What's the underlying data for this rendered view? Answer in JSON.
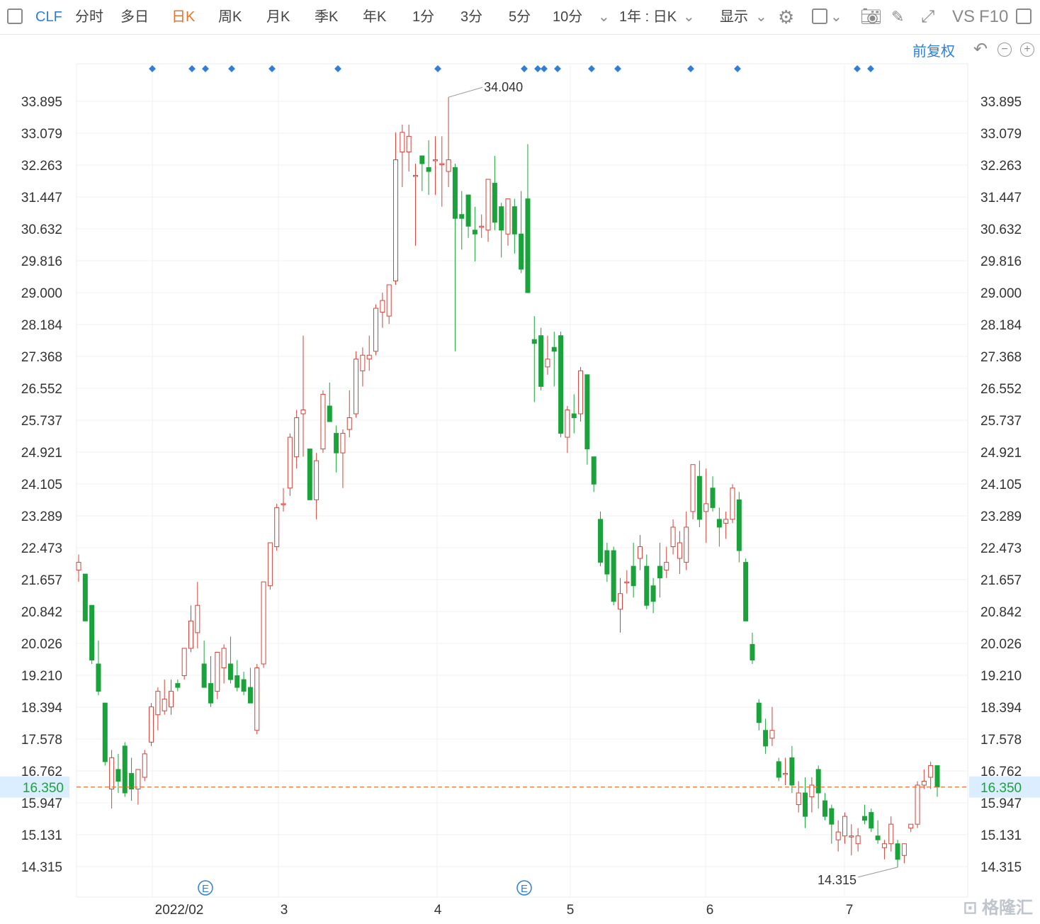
{
  "toolbar": {
    "ticker": "CLF",
    "tabs": [
      "分时",
      "多日",
      "日K",
      "周K",
      "月K",
      "季K",
      "年K",
      "1分",
      "3分",
      "5分",
      "10分"
    ],
    "active_tab": "日K",
    "range_select": "1年 : 日K",
    "display_select": "显示",
    "vs_label": "VS",
    "f10_label": "F10"
  },
  "subbar": {
    "adjust_label": "前复权"
  },
  "colors": {
    "up": "#d0443a",
    "down": "#1aa33a",
    "ref_line": "#e8742b",
    "current_price_bg": "#dbeeff",
    "current_price_text": "#1aa33a",
    "accent": "#2f7fd8"
  },
  "chart_data": {
    "type": "candlestick",
    "y_ticks": [
      "33.895",
      "33.079",
      "32.263",
      "31.447",
      "30.632",
      "29.816",
      "29.000",
      "28.184",
      "27.368",
      "26.552",
      "25.737",
      "24.921",
      "24.105",
      "23.289",
      "22.473",
      "21.657",
      "20.842",
      "20.026",
      "19.210",
      "18.394",
      "17.578",
      "16.762",
      "15.947",
      "15.131",
      "14.315"
    ],
    "ylim": [
      13.65,
      35.1
    ],
    "x_labels": [
      "2022/02",
      "3",
      "4",
      "5",
      "6",
      "7"
    ],
    "current_price": "16.350",
    "high_annotation": "34.040",
    "low_annotation": "14.315",
    "event_markers": [
      "E",
      "E"
    ],
    "grid": true,
    "candles": [
      {
        "o": 21.9,
        "h": 22.3,
        "l": 21.6,
        "c": 22.1
      },
      {
        "o": 21.8,
        "h": 21.8,
        "l": 20.6,
        "c": 20.6
      },
      {
        "o": 21.0,
        "h": 21.0,
        "l": 19.5,
        "c": 19.6
      },
      {
        "o": 19.5,
        "h": 20.1,
        "l": 18.7,
        "c": 18.8
      },
      {
        "o": 18.5,
        "h": 18.5,
        "l": 16.9,
        "c": 17.0
      },
      {
        "o": 16.3,
        "h": 17.3,
        "l": 15.8,
        "c": 17.1
      },
      {
        "o": 16.8,
        "h": 17.2,
        "l": 16.2,
        "c": 16.5
      },
      {
        "o": 17.4,
        "h": 17.5,
        "l": 16.1,
        "c": 16.2
      },
      {
        "o": 16.7,
        "h": 17.1,
        "l": 16.0,
        "c": 16.3
      },
      {
        "o": 16.3,
        "h": 16.8,
        "l": 15.9,
        "c": 16.8
      },
      {
        "o": 16.6,
        "h": 17.3,
        "l": 16.5,
        "c": 17.2
      },
      {
        "o": 17.5,
        "h": 18.5,
        "l": 17.4,
        "c": 18.4
      },
      {
        "o": 18.2,
        "h": 18.9,
        "l": 17.8,
        "c": 18.8
      },
      {
        "o": 18.3,
        "h": 19.1,
        "l": 18.2,
        "c": 18.6
      },
      {
        "o": 18.4,
        "h": 19.1,
        "l": 18.2,
        "c": 18.8
      },
      {
        "o": 19.0,
        "h": 19.1,
        "l": 18.8,
        "c": 18.9
      },
      {
        "o": 19.2,
        "h": 19.9,
        "l": 19.1,
        "c": 19.9
      },
      {
        "o": 19.9,
        "h": 21.0,
        "l": 19.8,
        "c": 20.6
      },
      {
        "o": 20.3,
        "h": 21.6,
        "l": 19.9,
        "c": 21.0
      },
      {
        "o": 19.5,
        "h": 20.1,
        "l": 18.9,
        "c": 18.9
      },
      {
        "o": 19.0,
        "h": 19.7,
        "l": 18.4,
        "c": 18.5
      },
      {
        "o": 18.8,
        "h": 19.7,
        "l": 18.6,
        "c": 19.8
      },
      {
        "o": 19.4,
        "h": 20.0,
        "l": 19.0,
        "c": 19.9
      },
      {
        "o": 19.5,
        "h": 20.2,
        "l": 19.0,
        "c": 19.1
      },
      {
        "o": 19.2,
        "h": 19.6,
        "l": 18.8,
        "c": 18.9
      },
      {
        "o": 19.1,
        "h": 19.3,
        "l": 18.7,
        "c": 18.8
      },
      {
        "o": 18.9,
        "h": 19.4,
        "l": 18.6,
        "c": 18.5
      },
      {
        "o": 17.8,
        "h": 19.5,
        "l": 17.7,
        "c": 19.4
      },
      {
        "o": 19.5,
        "h": 21.6,
        "l": 19.4,
        "c": 21.6
      },
      {
        "o": 21.5,
        "h": 22.6,
        "l": 21.4,
        "c": 22.6
      },
      {
        "o": 22.5,
        "h": 23.6,
        "l": 22.4,
        "c": 23.5
      },
      {
        "o": 23.6,
        "h": 24.0,
        "l": 23.4,
        "c": 23.6
      },
      {
        "o": 24.0,
        "h": 25.4,
        "l": 23.8,
        "c": 25.3
      },
      {
        "o": 24.8,
        "h": 26.0,
        "l": 24.5,
        "c": 25.8
      },
      {
        "o": 25.9,
        "h": 27.9,
        "l": 24.8,
        "c": 26.0
      },
      {
        "o": 25.0,
        "h": 25.0,
        "l": 23.7,
        "c": 23.7
      },
      {
        "o": 23.7,
        "h": 24.9,
        "l": 23.2,
        "c": 24.7
      },
      {
        "o": 25.0,
        "h": 26.5,
        "l": 24.9,
        "c": 26.4
      },
      {
        "o": 26.1,
        "h": 26.7,
        "l": 25.7,
        "c": 25.7
      },
      {
        "o": 25.4,
        "h": 25.6,
        "l": 24.4,
        "c": 24.9
      },
      {
        "o": 24.9,
        "h": 25.5,
        "l": 24.0,
        "c": 25.4
      },
      {
        "o": 25.5,
        "h": 26.5,
        "l": 25.3,
        "c": 25.8
      },
      {
        "o": 25.9,
        "h": 27.5,
        "l": 25.8,
        "c": 27.3
      },
      {
        "o": 27.0,
        "h": 27.6,
        "l": 26.6,
        "c": 27.4
      },
      {
        "o": 27.3,
        "h": 27.9,
        "l": 27.0,
        "c": 27.4
      },
      {
        "o": 27.5,
        "h": 28.7,
        "l": 27.4,
        "c": 28.6
      },
      {
        "o": 28.5,
        "h": 29.0,
        "l": 28.1,
        "c": 28.8
      },
      {
        "o": 28.4,
        "h": 29.2,
        "l": 28.2,
        "c": 29.2
      },
      {
        "o": 29.3,
        "h": 33.1,
        "l": 29.2,
        "c": 32.4
      },
      {
        "o": 32.6,
        "h": 33.3,
        "l": 31.7,
        "c": 33.1
      },
      {
        "o": 32.6,
        "h": 33.3,
        "l": 32.1,
        "c": 33.0
      },
      {
        "o": 32.0,
        "h": 32.3,
        "l": 30.2,
        "c": 32.0
      },
      {
        "o": 32.5,
        "h": 32.5,
        "l": 31.6,
        "c": 32.3
      },
      {
        "o": 32.2,
        "h": 32.9,
        "l": 31.5,
        "c": 32.1
      },
      {
        "o": 32.4,
        "h": 33.0,
        "l": 31.5,
        "c": 32.4
      },
      {
        "o": 32.3,
        "h": 33.0,
        "l": 31.2,
        "c": 32.3
      },
      {
        "o": 32.1,
        "h": 34.0,
        "l": 31.7,
        "c": 32.4
      },
      {
        "o": 32.2,
        "h": 32.3,
        "l": 27.5,
        "c": 30.9
      },
      {
        "o": 31.0,
        "h": 31.6,
        "l": 30.1,
        "c": 30.9
      },
      {
        "o": 31.5,
        "h": 31.5,
        "l": 30.4,
        "c": 30.7
      },
      {
        "o": 30.6,
        "h": 31.2,
        "l": 29.8,
        "c": 30.5
      },
      {
        "o": 30.7,
        "h": 31.0,
        "l": 30.4,
        "c": 30.7
      },
      {
        "o": 30.6,
        "h": 31.9,
        "l": 30.3,
        "c": 31.9
      },
      {
        "o": 31.8,
        "h": 32.5,
        "l": 30.6,
        "c": 30.8
      },
      {
        "o": 31.2,
        "h": 31.3,
        "l": 29.9,
        "c": 30.6
      },
      {
        "o": 30.5,
        "h": 31.4,
        "l": 30.2,
        "c": 31.4
      },
      {
        "o": 31.2,
        "h": 31.4,
        "l": 30.0,
        "c": 30.5
      },
      {
        "o": 30.5,
        "h": 31.6,
        "l": 29.5,
        "c": 29.6
      },
      {
        "o": 31.4,
        "h": 32.8,
        "l": 29.0,
        "c": 29.0
      },
      {
        "o": 27.8,
        "h": 28.4,
        "l": 26.2,
        "c": 27.7
      },
      {
        "o": 27.9,
        "h": 28.1,
        "l": 26.5,
        "c": 26.6
      },
      {
        "o": 27.1,
        "h": 27.9,
        "l": 26.9,
        "c": 27.3
      },
      {
        "o": 27.6,
        "h": 28.0,
        "l": 26.6,
        "c": 27.5
      },
      {
        "o": 27.9,
        "h": 28.0,
        "l": 25.3,
        "c": 25.4
      },
      {
        "o": 25.3,
        "h": 26.1,
        "l": 24.9,
        "c": 26.0
      },
      {
        "o": 25.9,
        "h": 26.4,
        "l": 25.4,
        "c": 25.8
      },
      {
        "o": 25.9,
        "h": 27.1,
        "l": 25.7,
        "c": 27.0
      },
      {
        "o": 26.9,
        "h": 26.9,
        "l": 24.6,
        "c": 25.0
      },
      {
        "o": 24.8,
        "h": 24.8,
        "l": 23.9,
        "c": 24.1
      },
      {
        "o": 23.2,
        "h": 23.4,
        "l": 22.0,
        "c": 22.1
      },
      {
        "o": 22.4,
        "h": 22.6,
        "l": 21.6,
        "c": 21.8
      },
      {
        "o": 22.4,
        "h": 22.5,
        "l": 21.0,
        "c": 21.1
      },
      {
        "o": 20.9,
        "h": 21.7,
        "l": 20.3,
        "c": 21.3
      },
      {
        "o": 21.6,
        "h": 21.9,
        "l": 21.3,
        "c": 21.6
      },
      {
        "o": 22.0,
        "h": 22.6,
        "l": 21.2,
        "c": 21.5
      },
      {
        "o": 22.2,
        "h": 22.8,
        "l": 21.9,
        "c": 22.5
      },
      {
        "o": 22.0,
        "h": 22.3,
        "l": 20.9,
        "c": 21.0
      },
      {
        "o": 21.5,
        "h": 21.7,
        "l": 20.8,
        "c": 21.1
      },
      {
        "o": 22.0,
        "h": 22.6,
        "l": 21.2,
        "c": 21.7
      },
      {
        "o": 21.9,
        "h": 22.5,
        "l": 21.7,
        "c": 22.1
      },
      {
        "o": 22.5,
        "h": 23.2,
        "l": 22.3,
        "c": 23.0
      },
      {
        "o": 22.2,
        "h": 22.9,
        "l": 21.8,
        "c": 22.6
      },
      {
        "o": 22.1,
        "h": 23.4,
        "l": 21.9,
        "c": 23.0
      },
      {
        "o": 23.4,
        "h": 24.6,
        "l": 23.2,
        "c": 24.6
      },
      {
        "o": 24.3,
        "h": 24.7,
        "l": 23.0,
        "c": 23.2
      },
      {
        "o": 23.4,
        "h": 24.5,
        "l": 22.6,
        "c": 23.6
      },
      {
        "o": 24.0,
        "h": 24.3,
        "l": 23.4,
        "c": 23.5
      },
      {
        "o": 23.2,
        "h": 23.5,
        "l": 22.5,
        "c": 23.0
      },
      {
        "o": 23.1,
        "h": 23.4,
        "l": 22.7,
        "c": 23.2
      },
      {
        "o": 23.2,
        "h": 24.1,
        "l": 23.1,
        "c": 24.0
      },
      {
        "o": 23.7,
        "h": 23.9,
        "l": 22.1,
        "c": 22.4
      },
      {
        "o": 22.1,
        "h": 22.2,
        "l": 20.6,
        "c": 20.6
      },
      {
        "o": 20.0,
        "h": 20.3,
        "l": 19.5,
        "c": 19.6
      },
      {
        "o": 18.5,
        "h": 18.6,
        "l": 17.8,
        "c": 18.0
      },
      {
        "o": 17.8,
        "h": 18.1,
        "l": 17.2,
        "c": 17.4
      },
      {
        "o": 17.6,
        "h": 18.4,
        "l": 17.4,
        "c": 17.8
      },
      {
        "o": 17.0,
        "h": 17.1,
        "l": 16.5,
        "c": 16.6
      },
      {
        "o": 16.7,
        "h": 17.1,
        "l": 16.4,
        "c": 16.7
      },
      {
        "o": 17.1,
        "h": 17.4,
        "l": 16.2,
        "c": 16.4
      },
      {
        "o": 15.9,
        "h": 16.5,
        "l": 15.7,
        "c": 16.2
      },
      {
        "o": 16.2,
        "h": 16.6,
        "l": 15.3,
        "c": 15.6
      },
      {
        "o": 16.1,
        "h": 16.6,
        "l": 15.7,
        "c": 16.4
      },
      {
        "o": 16.8,
        "h": 16.9,
        "l": 15.8,
        "c": 16.2
      },
      {
        "o": 16.0,
        "h": 16.2,
        "l": 15.5,
        "c": 15.6
      },
      {
        "o": 15.8,
        "h": 15.9,
        "l": 14.9,
        "c": 15.4
      },
      {
        "o": 15.0,
        "h": 15.5,
        "l": 14.7,
        "c": 15.2
      },
      {
        "o": 15.1,
        "h": 15.7,
        "l": 14.9,
        "c": 15.6
      },
      {
        "o": 15.1,
        "h": 15.4,
        "l": 14.6,
        "c": 15.1
      },
      {
        "o": 14.9,
        "h": 15.3,
        "l": 14.7,
        "c": 15.1
      },
      {
        "o": 15.6,
        "h": 15.9,
        "l": 15.4,
        "c": 15.5
      },
      {
        "o": 15.7,
        "h": 15.8,
        "l": 15.2,
        "c": 15.3
      },
      {
        "o": 15.1,
        "h": 15.5,
        "l": 14.9,
        "c": 15.0
      },
      {
        "o": 14.8,
        "h": 15.0,
        "l": 14.5,
        "c": 14.9
      },
      {
        "o": 14.9,
        "h": 15.6,
        "l": 14.7,
        "c": 15.4
      },
      {
        "o": 14.9,
        "h": 15.0,
        "l": 14.3,
        "c": 14.5
      },
      {
        "o": 14.6,
        "h": 14.9,
        "l": 14.4,
        "c": 14.9
      },
      {
        "o": 15.3,
        "h": 15.4,
        "l": 15.2,
        "c": 15.4
      },
      {
        "o": 15.4,
        "h": 16.5,
        "l": 15.3,
        "c": 16.4
      },
      {
        "o": 16.4,
        "h": 16.8,
        "l": 16.3,
        "c": 16.5
      },
      {
        "o": 16.6,
        "h": 17.0,
        "l": 16.3,
        "c": 16.9
      },
      {
        "o": 16.9,
        "h": 16.9,
        "l": 16.1,
        "c": 16.35
      }
    ]
  }
}
